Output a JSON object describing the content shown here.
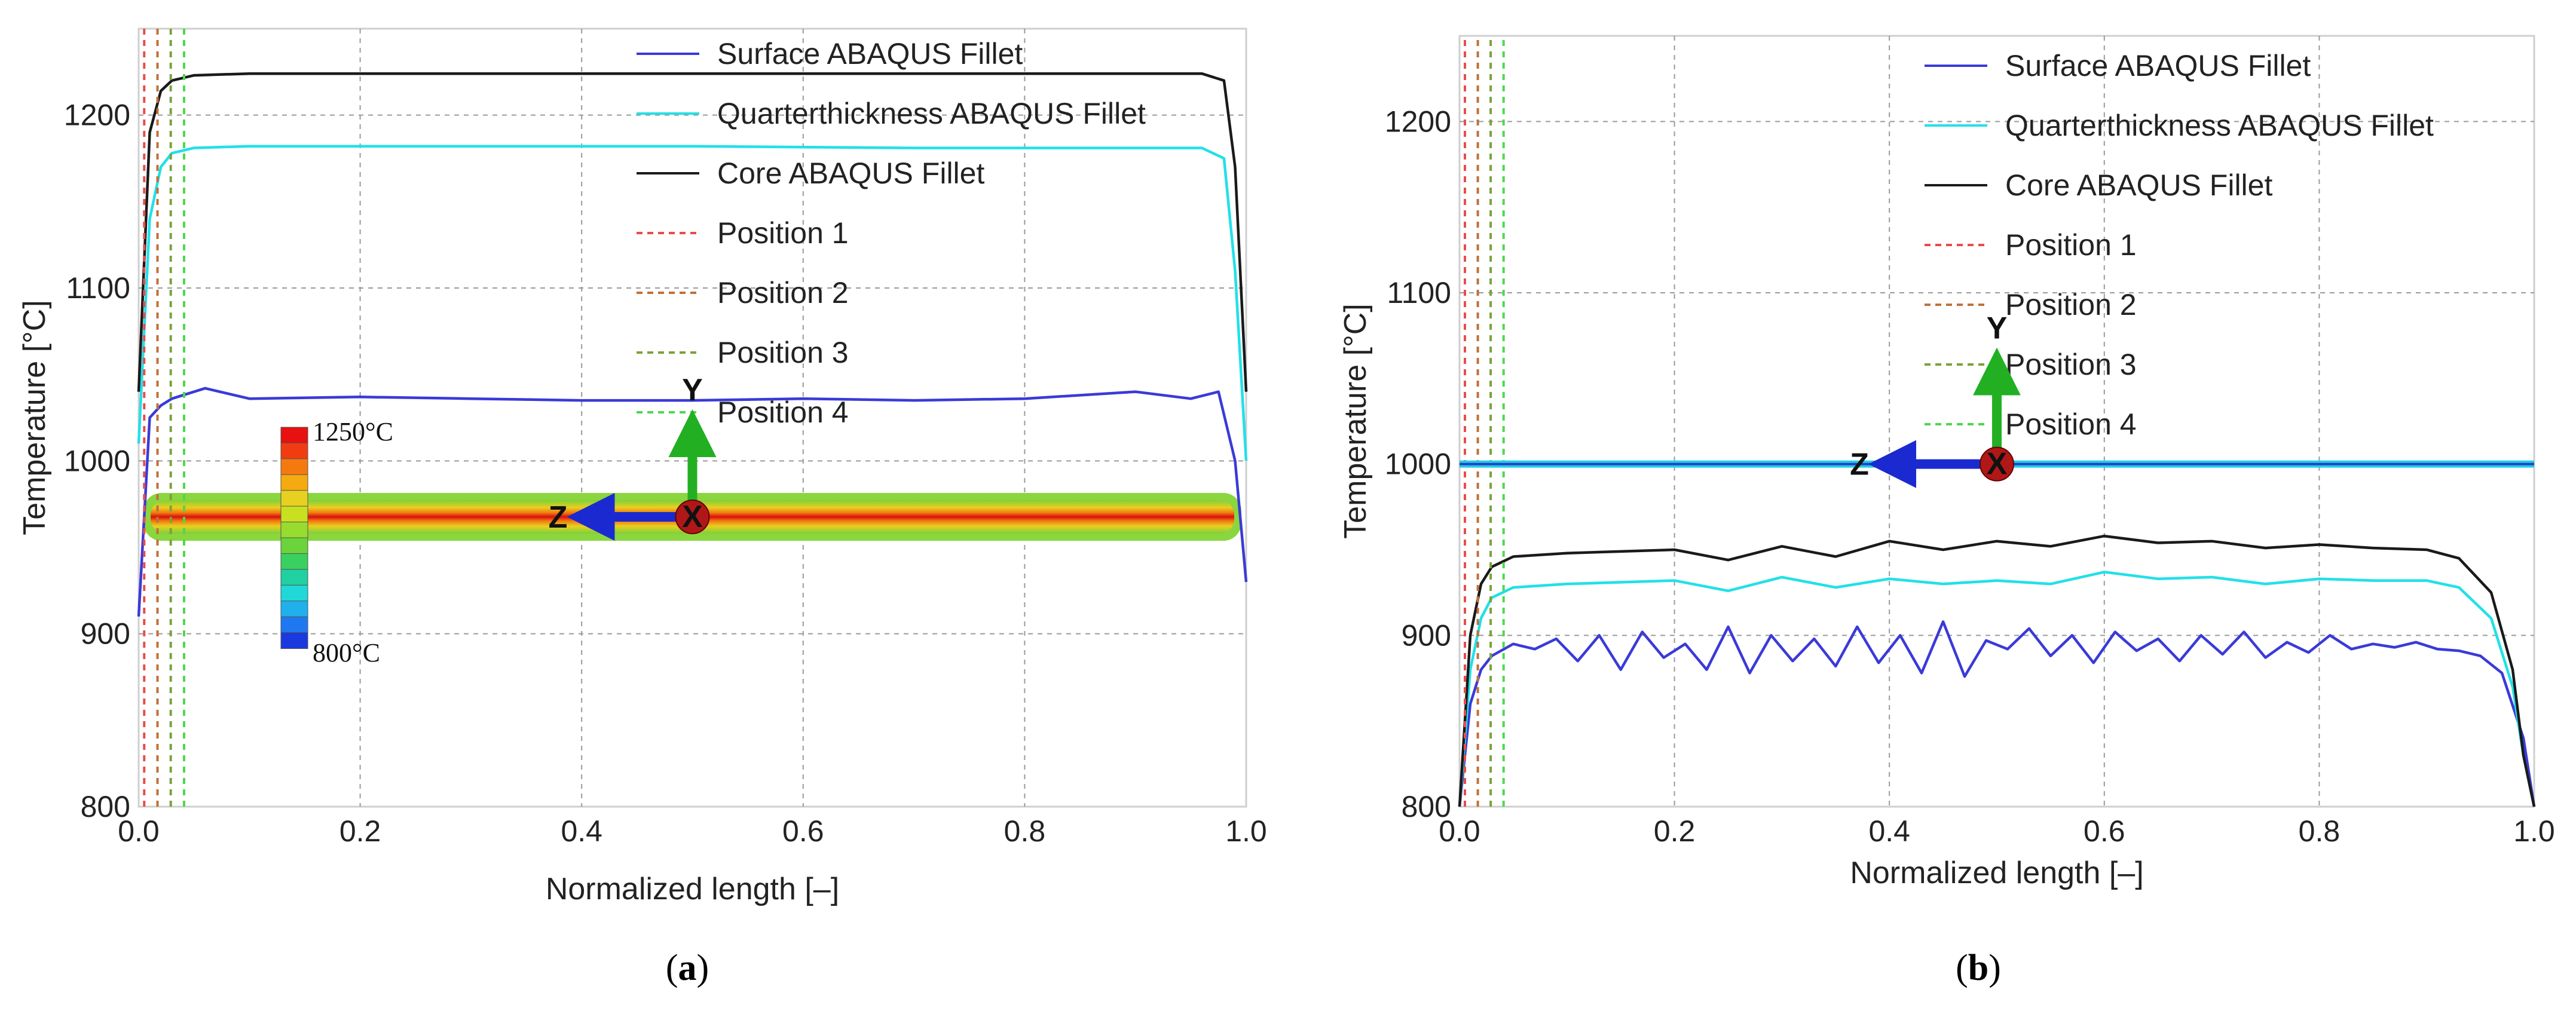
{
  "chart_data": [
    {
      "type": "line",
      "panel": "a",
      "caption": "(a)",
      "caption_letter": "a",
      "xlabel": "Normalized length [–]",
      "ylabel": "Temperature [°C]",
      "xlim": [
        0,
        1
      ],
      "ylim": [
        800,
        1250
      ],
      "x_ticks": [
        "0.0",
        "0.2",
        "0.4",
        "0.6",
        "0.8",
        "1.0"
      ],
      "y_ticks": [
        "800",
        "900",
        "1000",
        "1100",
        "1200"
      ],
      "grid": true,
      "legend_position": "top-right",
      "series": [
        {
          "name": "Surface ABAQUS Fillet",
          "color": "#3a3ad8",
          "style": "solid",
          "x": [
            0.0,
            0.01,
            0.02,
            0.03,
            0.06,
            0.1,
            0.2,
            0.3,
            0.4,
            0.5,
            0.6,
            0.7,
            0.8,
            0.9,
            0.95,
            0.975,
            0.99,
            1.0
          ],
          "y": [
            910,
            1025,
            1032,
            1036,
            1042,
            1036,
            1037,
            1036,
            1035,
            1035,
            1036,
            1035,
            1036,
            1040,
            1036,
            1040,
            1000,
            930
          ]
        },
        {
          "name": "Quarterthickness ABAQUS Fillet",
          "color": "#22e0e8",
          "style": "solid",
          "x": [
            0.0,
            0.01,
            0.02,
            0.03,
            0.05,
            0.1,
            0.3,
            0.5,
            0.7,
            0.9,
            0.96,
            0.98,
            0.99,
            1.0
          ],
          "y": [
            1010,
            1140,
            1170,
            1178,
            1181,
            1182,
            1182,
            1182,
            1181,
            1181,
            1181,
            1175,
            1110,
            1000
          ]
        },
        {
          "name": "Core ABAQUS Fillet",
          "color": "#1a1a1a",
          "style": "solid",
          "x": [
            0.0,
            0.01,
            0.02,
            0.03,
            0.05,
            0.1,
            0.3,
            0.5,
            0.7,
            0.9,
            0.96,
            0.98,
            0.99,
            1.0
          ],
          "y": [
            1040,
            1190,
            1214,
            1220,
            1223,
            1224,
            1224,
            1224,
            1224,
            1224,
            1224,
            1220,
            1170,
            1040
          ]
        },
        {
          "name": "Position 1",
          "color": "#e84c4c",
          "style": "dashed",
          "x": [
            0.005,
            0.005
          ],
          "y": [
            800,
            1250
          ]
        },
        {
          "name": "Position 2",
          "color": "#c0703a",
          "style": "dashed",
          "x": [
            0.017,
            0.017
          ],
          "y": [
            800,
            1250
          ]
        },
        {
          "name": "Position 3",
          "color": "#7aa23a",
          "style": "dashed",
          "x": [
            0.029,
            0.029
          ],
          "y": [
            800,
            1250
          ]
        },
        {
          "name": "Position 4",
          "color": "#4ed84e",
          "style": "dashed",
          "x": [
            0.041,
            0.041
          ],
          "y": [
            800,
            1250
          ]
        }
      ],
      "colorbar": {
        "max_label": "1250°C",
        "min_label": "800°C"
      },
      "axes_triad": {
        "y_label": "Y",
        "z_label": "Z",
        "x_label": "X"
      }
    },
    {
      "type": "line",
      "panel": "b",
      "caption": "(b)",
      "caption_letter": "b",
      "xlabel": "Normalized length [–]",
      "ylabel": "Temperature [°C]",
      "xlim": [
        0,
        1
      ],
      "ylim": [
        800,
        1250
      ],
      "x_ticks": [
        "0.0",
        "0.2",
        "0.4",
        "0.6",
        "0.8",
        "1.0"
      ],
      "y_ticks": [
        "800",
        "900",
        "1000",
        "1100",
        "1200"
      ],
      "grid": true,
      "legend_position": "top-right",
      "series": [
        {
          "name": "Surface ABAQUS Fillet",
          "color": "#3a3ad8",
          "style": "solid",
          "x": [
            0.0,
            0.01,
            0.02,
            0.03,
            0.05,
            0.07,
            0.09,
            0.11,
            0.13,
            0.15,
            0.17,
            0.19,
            0.21,
            0.23,
            0.25,
            0.27,
            0.29,
            0.31,
            0.33,
            0.35,
            0.37,
            0.39,
            0.41,
            0.43,
            0.45,
            0.47,
            0.49,
            0.51,
            0.53,
            0.55,
            0.57,
            0.59,
            0.61,
            0.63,
            0.65,
            0.67,
            0.69,
            0.71,
            0.73,
            0.75,
            0.77,
            0.79,
            0.81,
            0.83,
            0.85,
            0.87,
            0.89,
            0.91,
            0.93,
            0.95,
            0.97,
            0.99,
            1.0
          ],
          "y": [
            800,
            860,
            880,
            888,
            895,
            892,
            898,
            885,
            900,
            880,
            902,
            887,
            895,
            880,
            905,
            878,
            900,
            885,
            898,
            882,
            905,
            884,
            900,
            878,
            908,
            876,
            897,
            892,
            904,
            888,
            900,
            884,
            902,
            891,
            898,
            885,
            900,
            889,
            902,
            887,
            896,
            890,
            900,
            892,
            895,
            893,
            896,
            892,
            891,
            888,
            878,
            840,
            800
          ]
        },
        {
          "name": "Quarterthickness ABAQUS Fillet",
          "color": "#22e0e8",
          "style": "solid",
          "x": [
            0.0,
            0.01,
            0.02,
            0.03,
            0.05,
            0.1,
            0.2,
            0.25,
            0.3,
            0.35,
            0.4,
            0.45,
            0.5,
            0.55,
            0.6,
            0.65,
            0.7,
            0.75,
            0.8,
            0.85,
            0.9,
            0.93,
            0.96,
            0.98,
            0.99,
            1.0
          ],
          "y": [
            800,
            880,
            910,
            922,
            928,
            930,
            932,
            926,
            934,
            928,
            933,
            930,
            932,
            930,
            937,
            933,
            934,
            930,
            933,
            932,
            932,
            928,
            910,
            870,
            830,
            800
          ]
        },
        {
          "name": "Core ABAQUS Fillet",
          "color": "#1a1a1a",
          "style": "solid",
          "x": [
            0.0,
            0.01,
            0.02,
            0.03,
            0.05,
            0.1,
            0.2,
            0.25,
            0.3,
            0.35,
            0.4,
            0.45,
            0.5,
            0.55,
            0.6,
            0.65,
            0.7,
            0.75,
            0.8,
            0.85,
            0.9,
            0.93,
            0.96,
            0.98,
            0.99,
            1.0
          ],
          "y": [
            800,
            900,
            930,
            940,
            946,
            948,
            950,
            944,
            952,
            946,
            955,
            950,
            955,
            952,
            958,
            954,
            955,
            951,
            953,
            951,
            950,
            945,
            925,
            880,
            830,
            800
          ]
        },
        {
          "name": "Position 1",
          "color": "#e84c4c",
          "style": "dashed",
          "x": [
            0.005,
            0.005
          ],
          "y": [
            800,
            1250
          ]
        },
        {
          "name": "Position 2",
          "color": "#c0703a",
          "style": "dashed",
          "x": [
            0.017,
            0.017
          ],
          "y": [
            800,
            1250
          ]
        },
        {
          "name": "Position 3",
          "color": "#7aa23a",
          "style": "dashed",
          "x": [
            0.029,
            0.029
          ],
          "y": [
            800,
            1250
          ]
        },
        {
          "name": "Position 4",
          "color": "#4ed84e",
          "style": "dashed",
          "x": [
            0.041,
            0.041
          ],
          "y": [
            800,
            1250
          ]
        }
      ],
      "axes_triad": {
        "y_label": "Y",
        "z_label": "Z",
        "x_label": "X"
      }
    }
  ]
}
